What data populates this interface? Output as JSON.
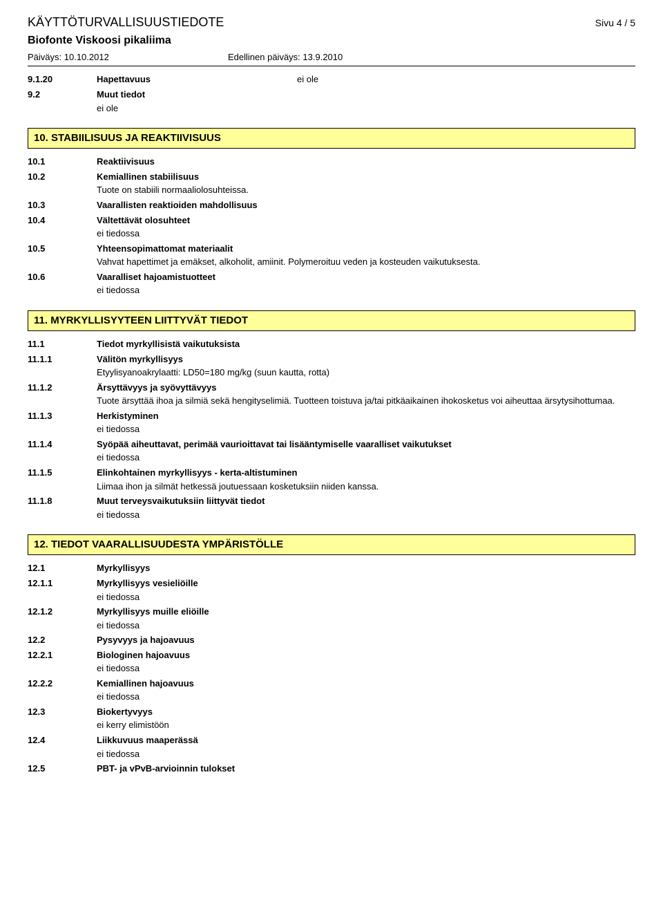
{
  "header": {
    "doc_title": "KÄYTTÖTURVALLISUUSTIEDOTE",
    "page_num": "Sivu  4 / 5",
    "product": "Biofonte Viskoosi pikaliima",
    "date_label": "Päiväys: 10.10.2012",
    "prev_date_label": "Edellinen päiväys: 13.9.2010"
  },
  "top_rows": [
    {
      "num": "9.1.20",
      "label": "Hapettavuus",
      "val": "ei ole"
    },
    {
      "num": "9.2",
      "label": "Muut tiedot",
      "val": ""
    }
  ],
  "top_body": "ei ole",
  "s10": {
    "title": "10. STABIILISUUS JA REAKTIIVISUUS",
    "r1": {
      "num": "10.1",
      "label": "Reaktiivisuus"
    },
    "r2": {
      "num": "10.2",
      "label": "Kemiallinen stabiilisuus",
      "body": "Tuote on stabiili normaaliolosuhteissa."
    },
    "r3": {
      "num": "10.3",
      "label": "Vaarallisten reaktioiden mahdollisuus"
    },
    "r4": {
      "num": "10.4",
      "label": "Vältettävät olosuhteet",
      "body": "ei tiedossa"
    },
    "r5": {
      "num": "10.5",
      "label": "Yhteensopimattomat materiaalit",
      "body": "Vahvat hapettimet ja emäkset, alkoholit, amiinit. Polymeroituu veden ja kosteuden vaikutuksesta."
    },
    "r6": {
      "num": "10.6",
      "label": "Vaaralliset hajoamistuotteet",
      "body": "ei tiedossa"
    }
  },
  "s11": {
    "title": "11. MYRKYLLISYYTEEN LIITTYVÄT TIEDOT",
    "r1": {
      "num": "11.1",
      "label": "Tiedot myrkyllisistä vaikutuksista"
    },
    "r11": {
      "num": "11.1.1",
      "label": "Välitön myrkyllisyys",
      "body": "Etyylisyanoakrylaatti: LD50=180 mg/kg (suun kautta, rotta)"
    },
    "r12": {
      "num": "11.1.2",
      "label": "Ärsyttävyys ja syövyttävyys",
      "body": "Tuote ärsyttää ihoa ja silmiä sekä hengityselimiä. Tuotteen toistuva ja/tai pitkäaikainen ihokosketus voi aiheuttaa ärsytysihottumaa."
    },
    "r13": {
      "num": "11.1.3",
      "label": "Herkistyminen",
      "body": "ei tiedossa"
    },
    "r14": {
      "num": "11.1.4",
      "label": "Syöpää aiheuttavat, perimää vaurioittavat tai lisääntymiselle vaaralliset vaikutukset",
      "body": "ei tiedossa"
    },
    "r15": {
      "num": "11.1.5",
      "label": "Elinkohtainen myrkyllisyys - kerta-altistuminen",
      "body": "Liimaa ihon ja silmät hetkessä joutuessaan kosketuksiin niiden kanssa."
    },
    "r18": {
      "num": "11.1.8",
      "label": "Muut terveysvaikutuksiin liittyvät tiedot",
      "body": "ei tiedossa"
    }
  },
  "s12": {
    "title": "12. TIEDOT VAARALLISUUDESTA YMPÄRISTÖLLE",
    "r1": {
      "num": "12.1",
      "label": "Myrkyllisyys"
    },
    "r11": {
      "num": "12.1.1",
      "label": "Myrkyllisyys vesieliöille",
      "body": "ei tiedossa"
    },
    "r12": {
      "num": "12.1.2",
      "label": "Myrkyllisyys muille eliöille",
      "body": "ei tiedossa"
    },
    "r2": {
      "num": "12.2",
      "label": "Pysyvyys ja hajoavuus"
    },
    "r21": {
      "num": "12.2.1",
      "label": "Biologinen hajoavuus",
      "body": "ei tiedossa"
    },
    "r22": {
      "num": "12.2.2",
      "label": "Kemiallinen hajoavuus",
      "body": "ei tiedossa"
    },
    "r3": {
      "num": "12.3",
      "label": "Biokertyvyys",
      "body": "ei kerry elimistöön"
    },
    "r4": {
      "num": "12.4",
      "label": "Liikkuvuus maaperässä",
      "body": "ei tiedossa"
    },
    "r5": {
      "num": "12.5",
      "label": "PBT- ja vPvB-arvioinnin tulokset"
    }
  }
}
